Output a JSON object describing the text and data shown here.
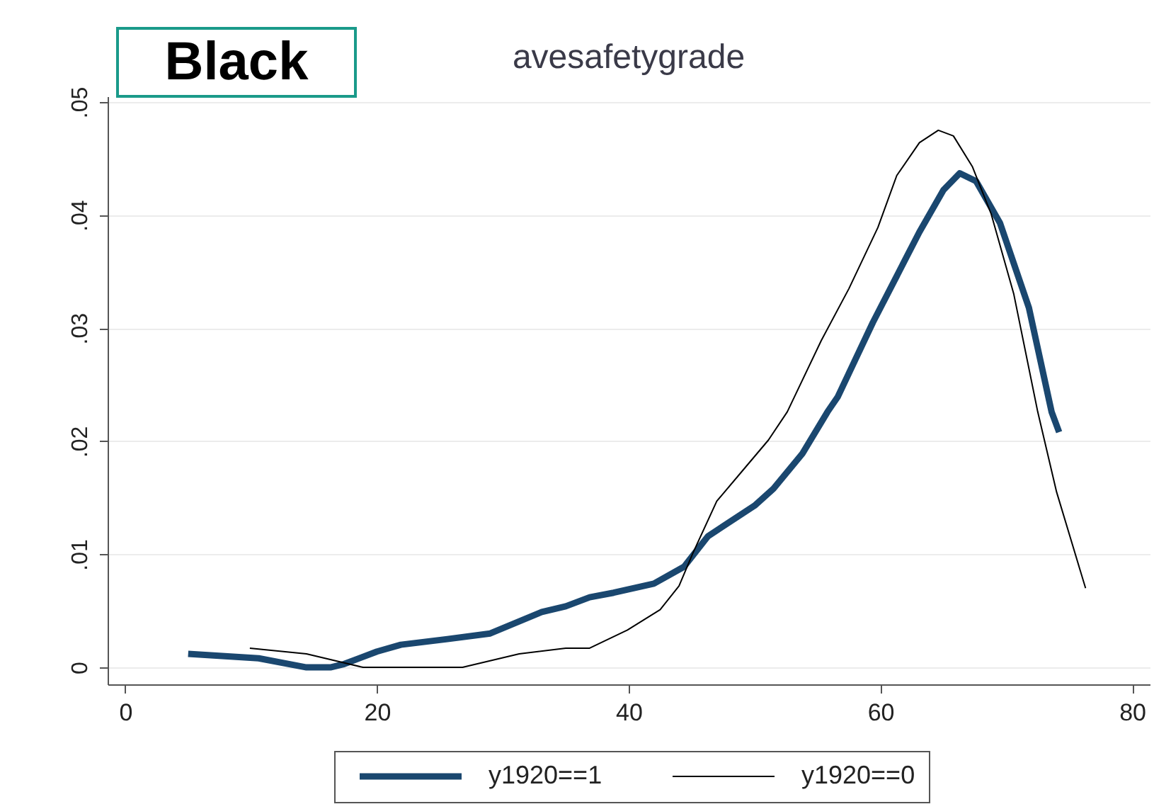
{
  "chart_data": {
    "type": "line",
    "title": "avesafetygrade",
    "annotations": [
      "Black"
    ],
    "xlim": [
      -1.4,
      81.4
    ],
    "xticks": [
      0,
      20,
      40,
      60,
      80
    ],
    "ylim": [
      -0.0015,
      0.0505
    ],
    "yticks": [
      0,
      {
        "value": 0.01,
        "label": ".01"
      },
      {
        "value": 0.02,
        "label": ".02"
      },
      {
        "value": 0.03,
        "label": ".03"
      },
      {
        "value": 0.04,
        "label": ".04"
      },
      {
        "value": 0.05,
        "label": ".05"
      }
    ],
    "grid": "y",
    "legend": "bottom",
    "series": [
      {
        "name": "y1920==1",
        "color": "#1a476f",
        "x": [
          5.0,
          10.6,
          14.4,
          16.3,
          17.4,
          20.0,
          21.9,
          25.6,
          29.0,
          33.1,
          35.0,
          36.9,
          38.8,
          42.0,
          44.4,
          46.3,
          50.0,
          51.5,
          53.8,
          55.8,
          56.6,
          59.4,
          63.1,
          65.0,
          66.3,
          67.6,
          69.5,
          71.8,
          73.6,
          74.2
        ],
        "values": [
          0.0012,
          0.0008,
          0.0,
          0.0,
          0.0003,
          0.0014,
          0.002,
          0.0025,
          0.003,
          0.0049,
          0.0054,
          0.0062,
          0.0066,
          0.0074,
          0.0089,
          0.0116,
          0.0143,
          0.0158,
          0.0189,
          0.0226,
          0.0239,
          0.0305,
          0.0385,
          0.0422,
          0.0437,
          0.043,
          0.0393,
          0.0318,
          0.0226,
          0.0208
        ]
      },
      {
        "name": "y1920==0",
        "color": "#000000",
        "x": [
          9.9,
          14.4,
          17.0,
          18.9,
          26.8,
          31.3,
          35.0,
          36.9,
          39.9,
          42.5,
          44.0,
          45.1,
          47.0,
          48.9,
          51.1,
          52.6,
          55.3,
          57.5,
          59.8,
          61.3,
          63.1,
          64.6,
          65.8,
          67.3,
          68.8,
          70.6,
          72.5,
          74.0,
          76.3
        ],
        "values": [
          0.0017,
          0.0012,
          0.0005,
          0.0,
          0.0,
          0.0012,
          0.0017,
          0.0017,
          0.0033,
          0.0051,
          0.0072,
          0.0101,
          0.0147,
          0.0172,
          0.0201,
          0.0226,
          0.0289,
          0.0335,
          0.0389,
          0.0435,
          0.0464,
          0.0475,
          0.047,
          0.0443,
          0.0401,
          0.033,
          0.0226,
          0.0155,
          0.007
        ]
      }
    ]
  }
}
